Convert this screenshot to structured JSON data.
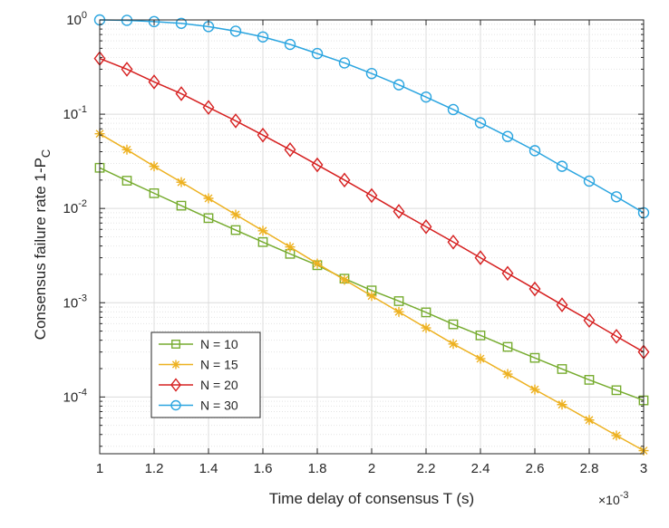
{
  "chart_data": {
    "type": "line",
    "xlabel": "Time delay of consensus T (s)",
    "ylabel_main": "Consensus failure rate 1-P",
    "ylabel_sub": "C",
    "x_multiplier_base": "×10",
    "x_multiplier_exp": "-3",
    "xlim": [
      1,
      3
    ],
    "ylim": [
      2.5e-05,
      1
    ],
    "yscale": "log",
    "grid": true,
    "legend_position": "bottom-left",
    "x_ticks": [
      {
        "value": 1,
        "label": "1"
      },
      {
        "value": 1.2,
        "label": "1.2"
      },
      {
        "value": 1.4,
        "label": "1.4"
      },
      {
        "value": 1.6,
        "label": "1.6"
      },
      {
        "value": 1.8,
        "label": "1.8"
      },
      {
        "value": 2,
        "label": "2"
      },
      {
        "value": 2.2,
        "label": "2.2"
      },
      {
        "value": 2.4,
        "label": "2.4"
      },
      {
        "value": 2.6,
        "label": "2.6"
      },
      {
        "value": 2.8,
        "label": "2.8"
      },
      {
        "value": 3,
        "label": "3"
      }
    ],
    "y_ticks": [
      {
        "value": 1,
        "base": "10",
        "exp": "0"
      },
      {
        "value": 0.1,
        "base": "10",
        "exp": "-1"
      },
      {
        "value": 0.01,
        "base": "10",
        "exp": "-2"
      },
      {
        "value": 0.001,
        "base": "10",
        "exp": "-3"
      },
      {
        "value": 0.0001,
        "base": "10",
        "exp": "-4"
      }
    ],
    "x": [
      1,
      1.1,
      1.2,
      1.3,
      1.4,
      1.5,
      1.6,
      1.7,
      1.8,
      1.9,
      2,
      2.1,
      2.2,
      2.3,
      2.4,
      2.5,
      2.6,
      2.7,
      2.8,
      2.9,
      3
    ],
    "series": [
      {
        "name": "N = 10",
        "color": "#77ac30",
        "marker": "square",
        "values": [
          0.027,
          0.0197,
          0.0145,
          0.0107,
          0.0079,
          0.0059,
          0.0044,
          0.0033,
          0.0025,
          0.0018,
          0.00135,
          0.00104,
          0.00079,
          0.00059,
          0.00045,
          0.00034,
          0.00026,
          0.000198,
          0.000152,
          0.000118,
          9.2e-05
        ]
      },
      {
        "name": "N = 15",
        "color": "#edb120",
        "marker": "asterisk",
        "values": [
          0.062,
          0.042,
          0.028,
          0.019,
          0.0128,
          0.0086,
          0.0058,
          0.0039,
          0.0026,
          0.00175,
          0.00118,
          0.0008,
          0.00054,
          0.000365,
          0.000255,
          0.000175,
          0.00012,
          8.3e-05,
          5.7e-05,
          3.9e-05,
          2.7e-05
        ]
      },
      {
        "name": "N = 20",
        "color": "#d62020",
        "marker": "diamond",
        "values": [
          0.39,
          0.3,
          0.22,
          0.165,
          0.118,
          0.085,
          0.06,
          0.042,
          0.029,
          0.02,
          0.0137,
          0.0093,
          0.0064,
          0.0044,
          0.003,
          0.00205,
          0.0014,
          0.00095,
          0.00065,
          0.00044,
          0.0003
        ]
      },
      {
        "name": "N = 30",
        "color": "#2ba5e0",
        "marker": "circle",
        "values": [
          1.0,
          0.99,
          0.96,
          0.92,
          0.85,
          0.76,
          0.66,
          0.55,
          0.44,
          0.35,
          0.27,
          0.205,
          0.152,
          0.112,
          0.081,
          0.058,
          0.041,
          0.028,
          0.0195,
          0.0133,
          0.009
        ]
      }
    ]
  }
}
